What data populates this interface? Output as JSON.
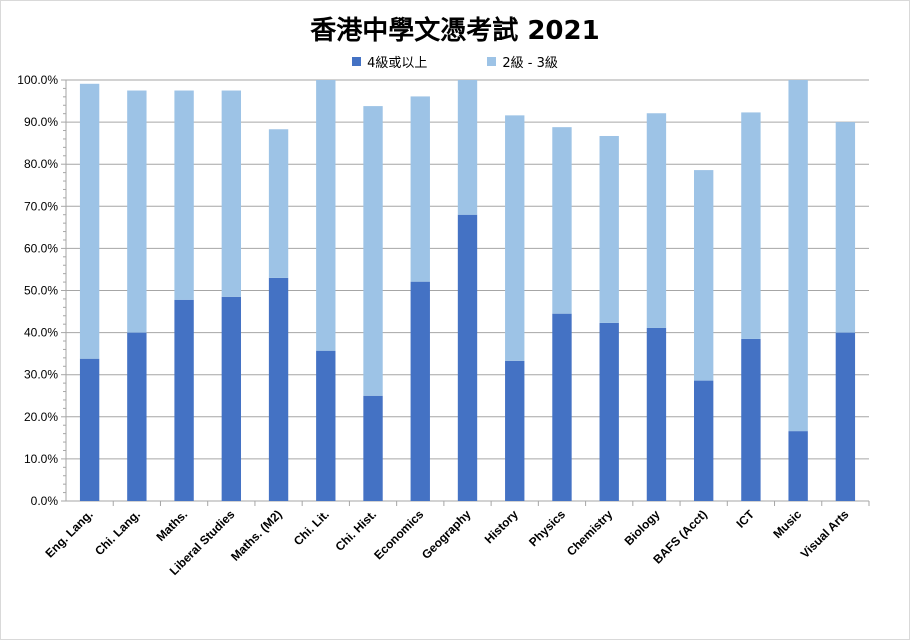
{
  "chart_data": {
    "type": "bar",
    "stacked": true,
    "title": "香港中學文憑考試 2021",
    "xlabel": "",
    "ylabel": "",
    "ylim": [
      0,
      100
    ],
    "yticks": [
      "0.0%",
      "10.0%",
      "20.0%",
      "30.0%",
      "40.0%",
      "50.0%",
      "60.0%",
      "70.0%",
      "80.0%",
      "90.0%",
      "100.0%"
    ],
    "grid": true,
    "legend_position": "top",
    "categories": [
      "Eng. Lang.",
      "Chi. Lang.",
      "Maths.",
      "Liberal Studies",
      "Maths. (M2)",
      "Chi. Lit.",
      "Chi. Hist.",
      "Economics",
      "Geography",
      "History",
      "Physics",
      "Chemistry",
      "Biology",
      "BAFS (Acct)",
      "ICT",
      "Music",
      "Visual Arts"
    ],
    "series": [
      {
        "name": "4級或以上",
        "color": "#4472c4",
        "values": [
          33.8,
          40.0,
          47.8,
          48.5,
          53.0,
          35.7,
          25.0,
          52.1,
          68.0,
          33.3,
          44.5,
          42.3,
          41.1,
          28.6,
          38.5,
          16.6,
          40.0
        ]
      },
      {
        "name": "2級 - 3級",
        "color": "#9dc3e6",
        "values": [
          65.3,
          57.5,
          49.7,
          49.0,
          35.3,
          64.3,
          68.8,
          44.0,
          32.0,
          58.3,
          44.3,
          44.4,
          51.0,
          50.0,
          53.8,
          83.4,
          50.0
        ]
      }
    ]
  }
}
